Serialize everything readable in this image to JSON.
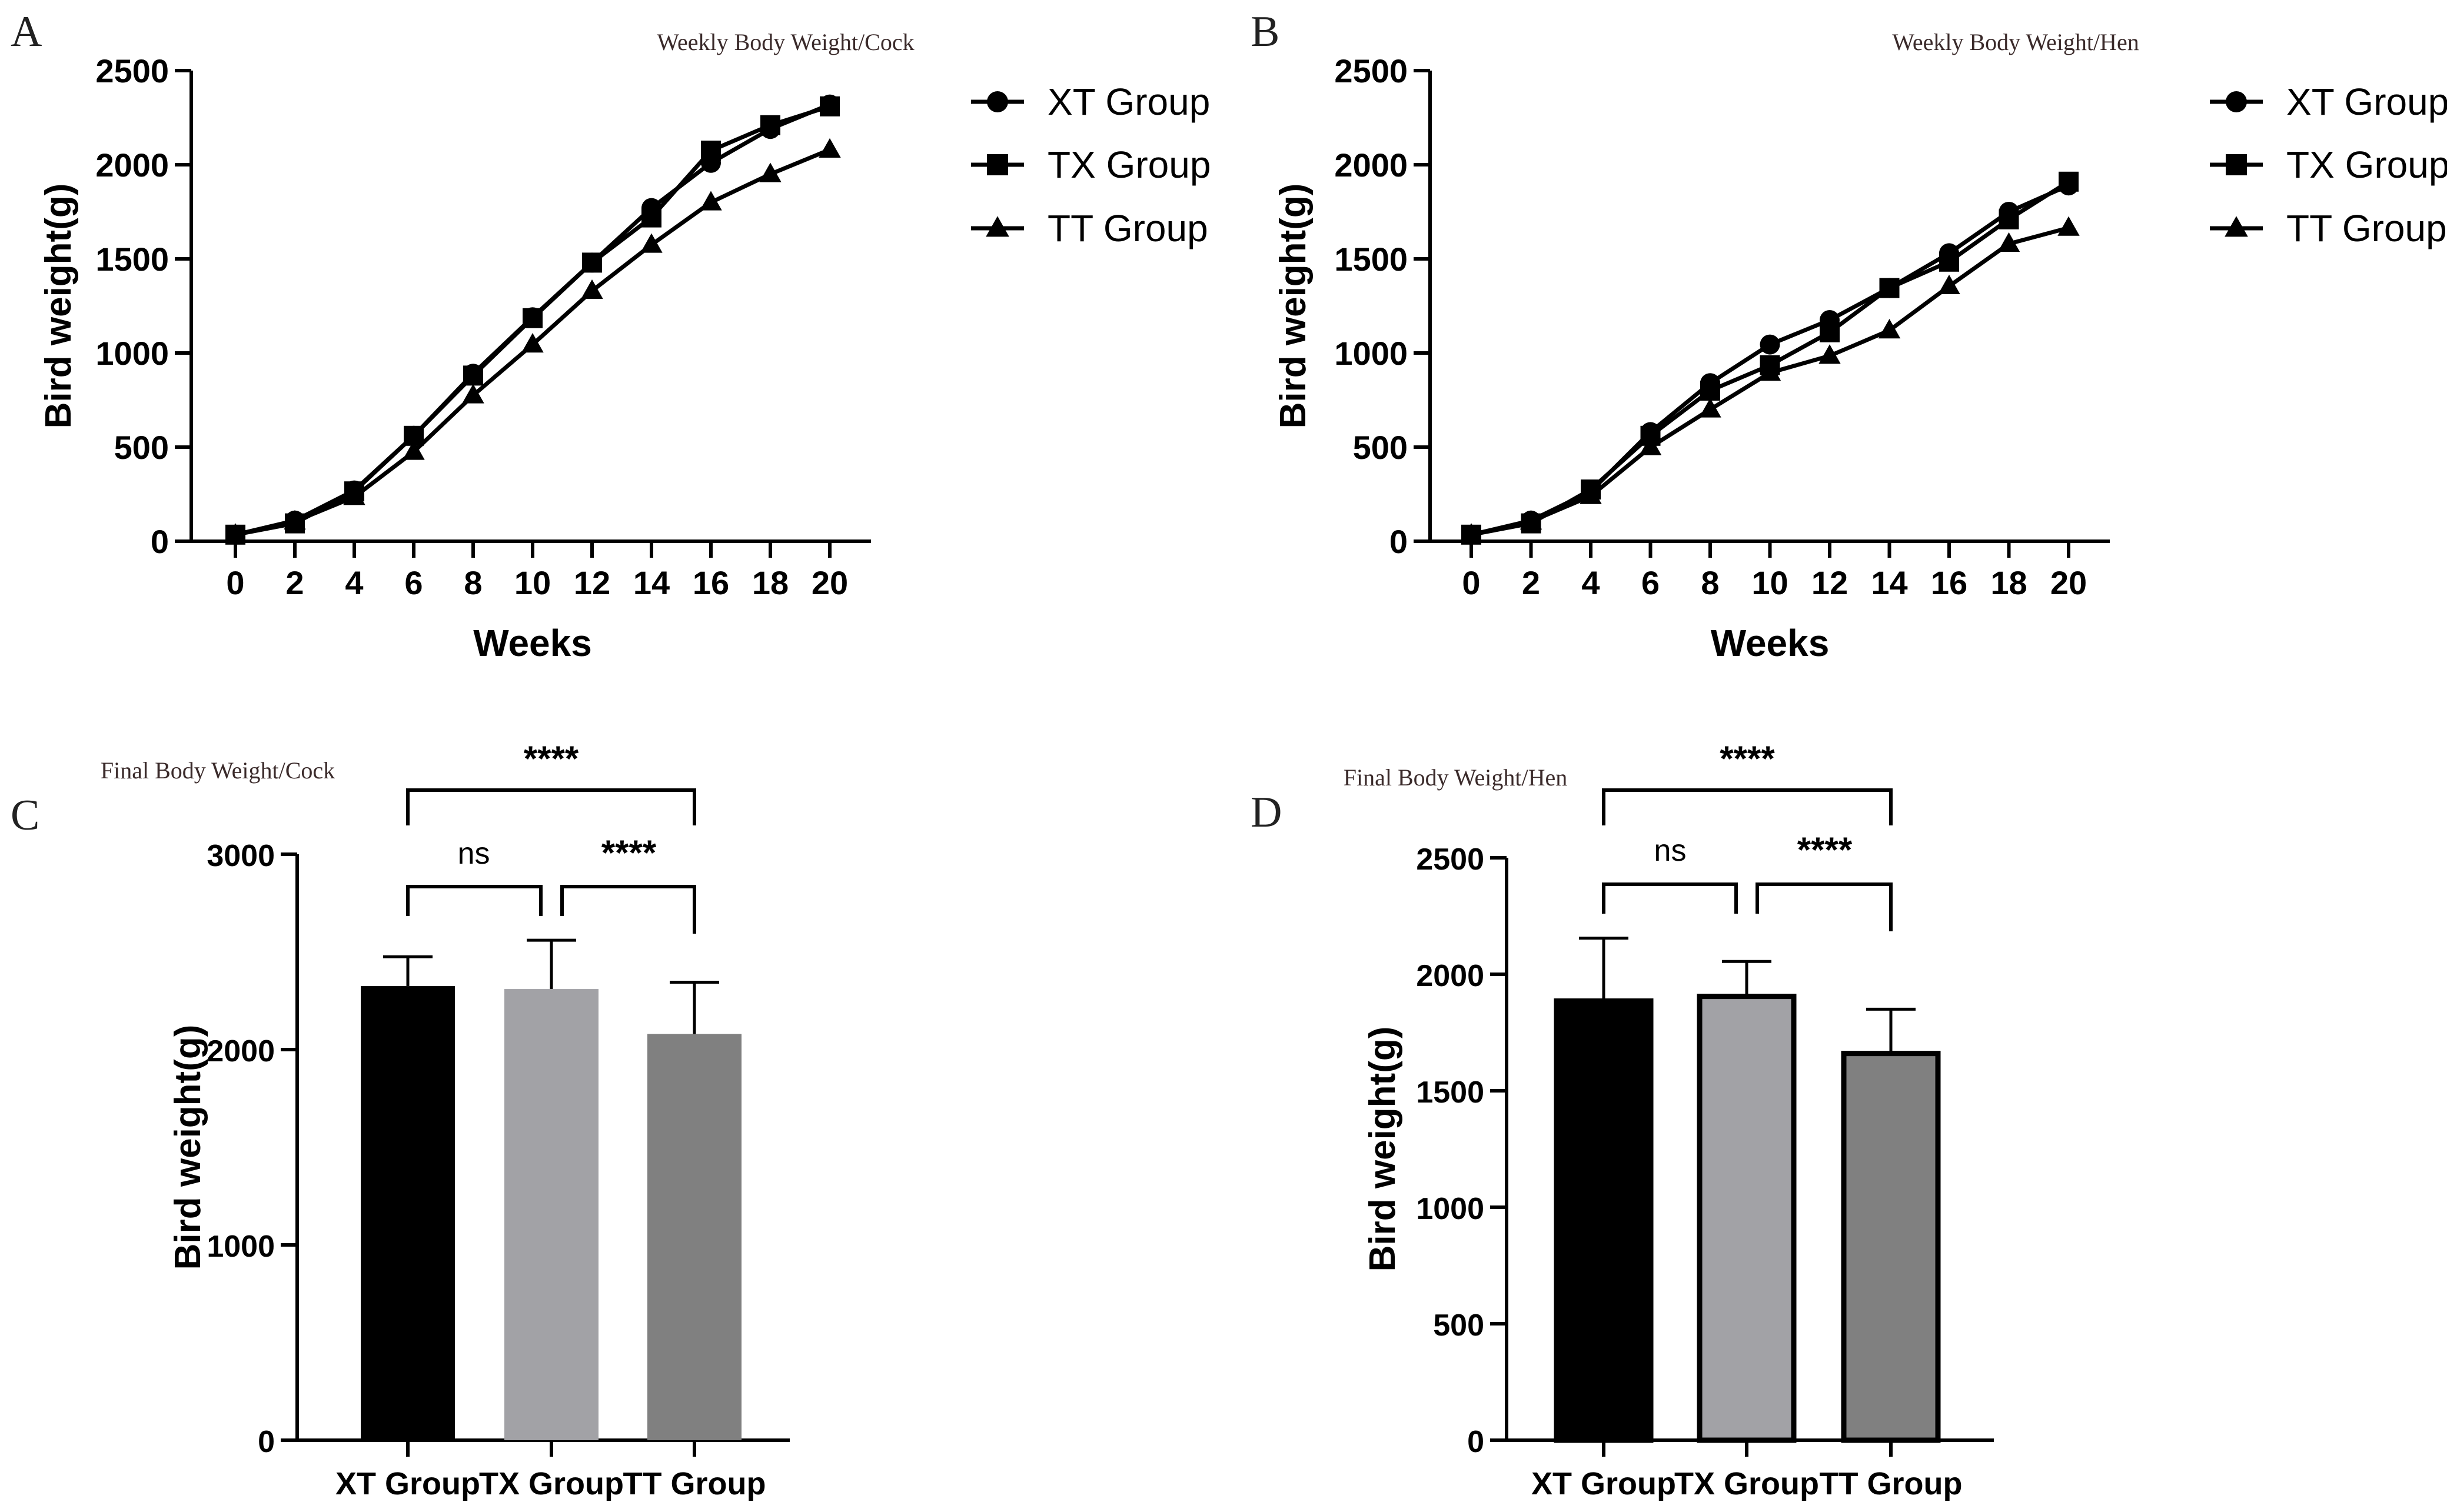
{
  "chart_data": [
    {
      "panel": "A",
      "type": "line",
      "title": "Weekly Body Weight/Cock",
      "xlabel": "Weeks",
      "ylabel": "Bird weight(g)",
      "x": [
        0,
        2,
        4,
        6,
        8,
        10,
        12,
        14,
        16,
        18,
        20
      ],
      "xticks": [
        "0",
        "2",
        "4",
        "6",
        "8",
        "10",
        "12",
        "14",
        "16",
        "18",
        "20"
      ],
      "ylim": [
        0,
        2500
      ],
      "yticks": [
        "0",
        "500",
        "1000",
        "1500",
        "2000",
        "2500"
      ],
      "legend": "right",
      "series": [
        {
          "name": "XT Group",
          "marker": "circle",
          "values": [
            35,
            110,
            270,
            560,
            890,
            1190,
            1480,
            1770,
            2010,
            2190,
            2320
          ]
        },
        {
          "name": "TX Group",
          "marker": "square",
          "values": [
            35,
            95,
            265,
            560,
            880,
            1185,
            1480,
            1720,
            2075,
            2210,
            2310
          ]
        },
        {
          "name": "TT Group",
          "marker": "triangle",
          "values": [
            35,
            105,
            235,
            475,
            775,
            1045,
            1330,
            1575,
            1800,
            1950,
            2080
          ]
        }
      ]
    },
    {
      "panel": "B",
      "type": "line",
      "title": "Weekly Body Weight/Hen",
      "xlabel": "Weeks",
      "ylabel": "Bird weight(g)",
      "x": [
        0,
        2,
        4,
        6,
        8,
        10,
        12,
        14,
        16,
        18,
        20
      ],
      "xticks": [
        "0",
        "2",
        "4",
        "6",
        "8",
        "10",
        "12",
        "14",
        "16",
        "18",
        "20"
      ],
      "ylim": [
        0,
        2500
      ],
      "yticks": [
        "0",
        "500",
        "1000",
        "1500",
        "2000",
        "2500"
      ],
      "legend": "right",
      "series": [
        {
          "name": "XT Group",
          "marker": "circle",
          "values": [
            35,
            110,
            265,
            580,
            840,
            1045,
            1175,
            1345,
            1530,
            1750,
            1890
          ]
        },
        {
          "name": "TX Group",
          "marker": "square",
          "values": [
            35,
            95,
            275,
            560,
            800,
            935,
            1110,
            1345,
            1485,
            1710,
            1910
          ]
        },
        {
          "name": "TT Group",
          "marker": "triangle",
          "values": [
            35,
            105,
            240,
            500,
            700,
            895,
            985,
            1120,
            1355,
            1580,
            1665
          ]
        }
      ]
    },
    {
      "panel": "C",
      "type": "bar",
      "title": "Final Body Weight/Cock",
      "ylabel": "Bird weight(g)",
      "categories": [
        "XT Group",
        "TX Group",
        "TT Group"
      ],
      "values": [
        2325,
        2310,
        2080
      ],
      "errors": [
        150,
        250,
        265
      ],
      "colors": [
        "#000000",
        "#a2a2a6",
        "#808080"
      ],
      "ylim": [
        0,
        3000
      ],
      "yticks": [
        "0",
        "1000",
        "2000",
        "3000"
      ],
      "significance": [
        {
          "from": 1,
          "to": 2,
          "label": "ns"
        },
        {
          "from": 2,
          "to": 3,
          "label": "****"
        },
        {
          "from": 1,
          "to": 3,
          "label": "****"
        }
      ]
    },
    {
      "panel": "D",
      "type": "bar",
      "title": "Final Body Weight/Hen",
      "ylabel": "Bird weight(g)",
      "categories": [
        "XT Group",
        "TX Group",
        "TT Group"
      ],
      "values": [
        1885,
        1905,
        1660
      ],
      "errors": [
        270,
        150,
        190
      ],
      "colors": [
        "#000000",
        "#a2a2a6",
        "#808080"
      ],
      "ylim": [
        0,
        2500
      ],
      "yticks": [
        "0",
        "500",
        "1000",
        "1500",
        "2000",
        "2500"
      ],
      "significance": [
        {
          "from": 1,
          "to": 2,
          "label": "ns"
        },
        {
          "from": 2,
          "to": 3,
          "label": "****"
        },
        {
          "from": 1,
          "to": 3,
          "label": "****"
        }
      ]
    }
  ]
}
